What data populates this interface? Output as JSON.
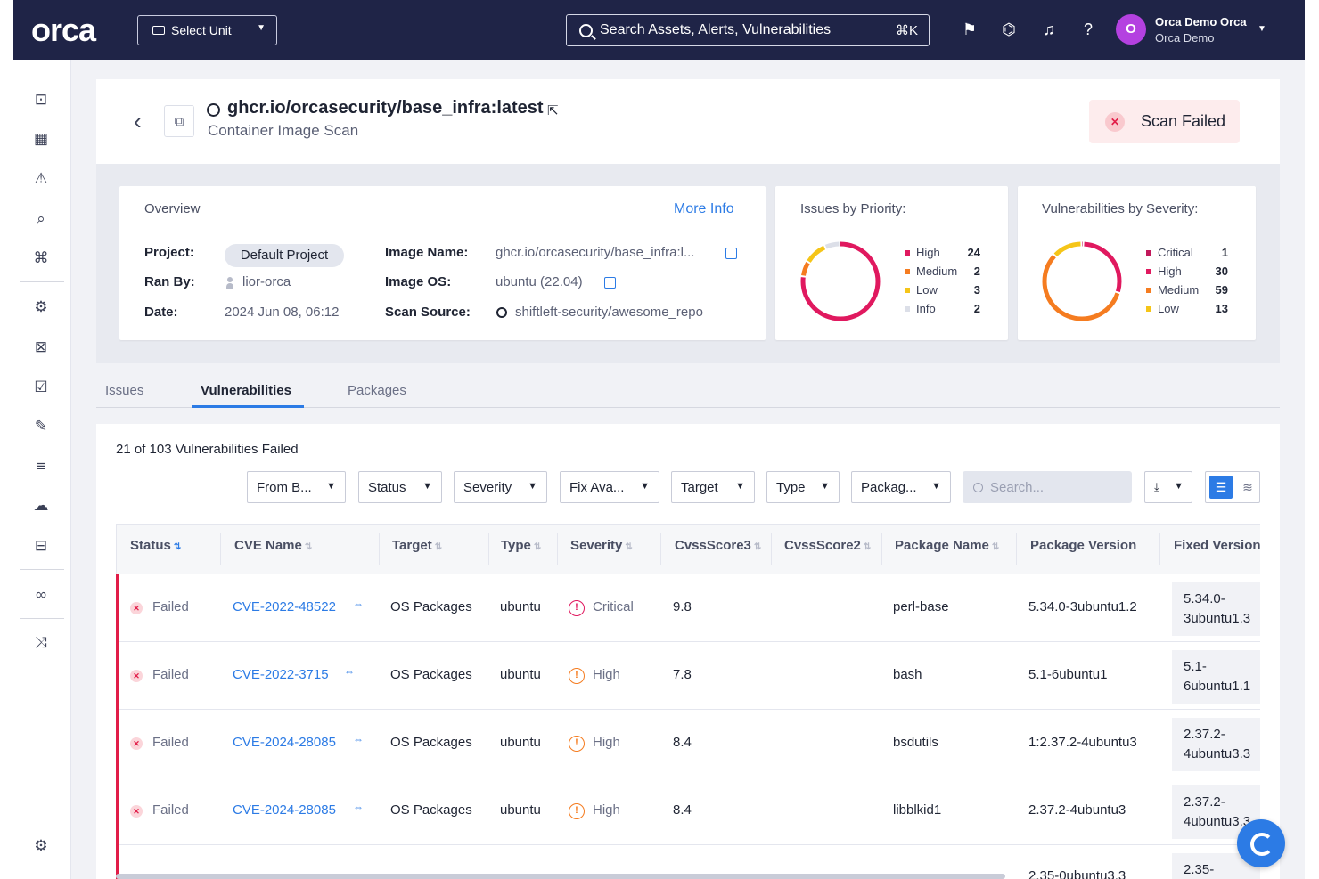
{
  "app": {
    "logo": "orca",
    "unit_select": "Select Unit",
    "search_placeholder": "Search Assets, Alerts, Vulnerabilities",
    "search_shortcut": "⌘K",
    "user_name": "Orca Demo Orca",
    "user_org": "Orca Demo",
    "avatar_letter": "O"
  },
  "header": {
    "title": "ghcr.io/orcasecurity/base_infra:latest",
    "subtitle": "Container Image Scan",
    "status": "Scan Failed"
  },
  "overview": {
    "heading": "Overview",
    "more_info": "More Info",
    "project_label": "Project:",
    "project_value": "Default Project",
    "ran_by_label": "Ran By:",
    "ran_by_value": "lior-orca",
    "date_label": "Date:",
    "date_value": "2024 Jun 08, 06:12",
    "image_name_label": "Image Name:",
    "image_name_value": "ghcr.io/orcasecurity/base_infra:l...",
    "image_os_label": "Image OS:",
    "image_os_value": "ubuntu (22.04)",
    "scan_source_label": "Scan Source:",
    "scan_source_value": "shiftleft-security/awesome_repo"
  },
  "issues_by_priority": {
    "heading": "Issues by Priority:",
    "items": [
      {
        "label": "High",
        "value": 24,
        "color": "#e0195f"
      },
      {
        "label": "Medium",
        "value": 2,
        "color": "#f57c20"
      },
      {
        "label": "Low",
        "value": 3,
        "color": "#f5c518"
      },
      {
        "label": "Info",
        "value": 2,
        "color": "#dcdfe8"
      }
    ]
  },
  "vulns_by_severity": {
    "heading": "Vulnerabilities by Severity:",
    "items": [
      {
        "label": "Critical",
        "value": 1,
        "color": "#c2185b"
      },
      {
        "label": "High",
        "value": 30,
        "color": "#e0195f"
      },
      {
        "label": "Medium",
        "value": 59,
        "color": "#f57c20"
      },
      {
        "label": "Low",
        "value": 13,
        "color": "#f5c518"
      }
    ]
  },
  "tabs": [
    "Issues",
    "Vulnerabilities",
    "Packages"
  ],
  "active_tab": "Vulnerabilities",
  "table": {
    "count_text": "21 of 103 Vulnerabilities Failed",
    "filters": [
      "From B...",
      "Status",
      "Severity",
      "Fix Ava...",
      "Target",
      "Type",
      "Packag..."
    ],
    "search_placeholder": "Search...",
    "columns": [
      "Status",
      "CVE Name",
      "Target",
      "Type",
      "Severity",
      "CvssScore3",
      "CvssScore2",
      "Package Name",
      "Package Version",
      "Fixed Version"
    ],
    "rows": [
      {
        "status": "Failed",
        "cve": "CVE-2022-48522",
        "target": "OS Packages",
        "type": "ubuntu",
        "severity": "Critical",
        "cvss3": "9.8",
        "cvss2": "",
        "package": "perl-base",
        "version": "5.34.0-3ubuntu1.2",
        "fixed_1": "5.34.0-",
        "fixed_2": "3ubuntu1.3"
      },
      {
        "status": "Failed",
        "cve": "CVE-2022-3715",
        "target": "OS Packages",
        "type": "ubuntu",
        "severity": "High",
        "cvss3": "7.8",
        "cvss2": "",
        "package": "bash",
        "version": "5.1-6ubuntu1",
        "fixed_1": "5.1-",
        "fixed_2": "6ubuntu1.1"
      },
      {
        "status": "Failed",
        "cve": "CVE-2024-28085",
        "target": "OS Packages",
        "type": "ubuntu",
        "severity": "High",
        "cvss3": "8.4",
        "cvss2": "",
        "package": "bsdutils",
        "version": "1:2.37.2-4ubuntu3",
        "fixed_1": "2.37.2-",
        "fixed_2": "4ubuntu3.3"
      },
      {
        "status": "Failed",
        "cve": "CVE-2024-28085",
        "target": "OS Packages",
        "type": "ubuntu",
        "severity": "High",
        "cvss3": "8.4",
        "cvss2": "",
        "package": "libblkid1",
        "version": "2.37.2-4ubuntu3",
        "fixed_1": "2.37.2-",
        "fixed_2": "4ubuntu3.3"
      },
      {
        "status": "",
        "cve": "",
        "target": "",
        "type": "",
        "severity": "",
        "cvss3": "",
        "cvss2": "",
        "package": "",
        "version": "2.35-0ubuntu3.3",
        "fixed_1": "2.35-",
        "fixed_2": ""
      }
    ]
  },
  "colors": {
    "accent": "#2c7be5",
    "topbar": "#1f2447",
    "failed": "#e11d48",
    "critical": "#e0195f",
    "high": "#f57c20"
  }
}
